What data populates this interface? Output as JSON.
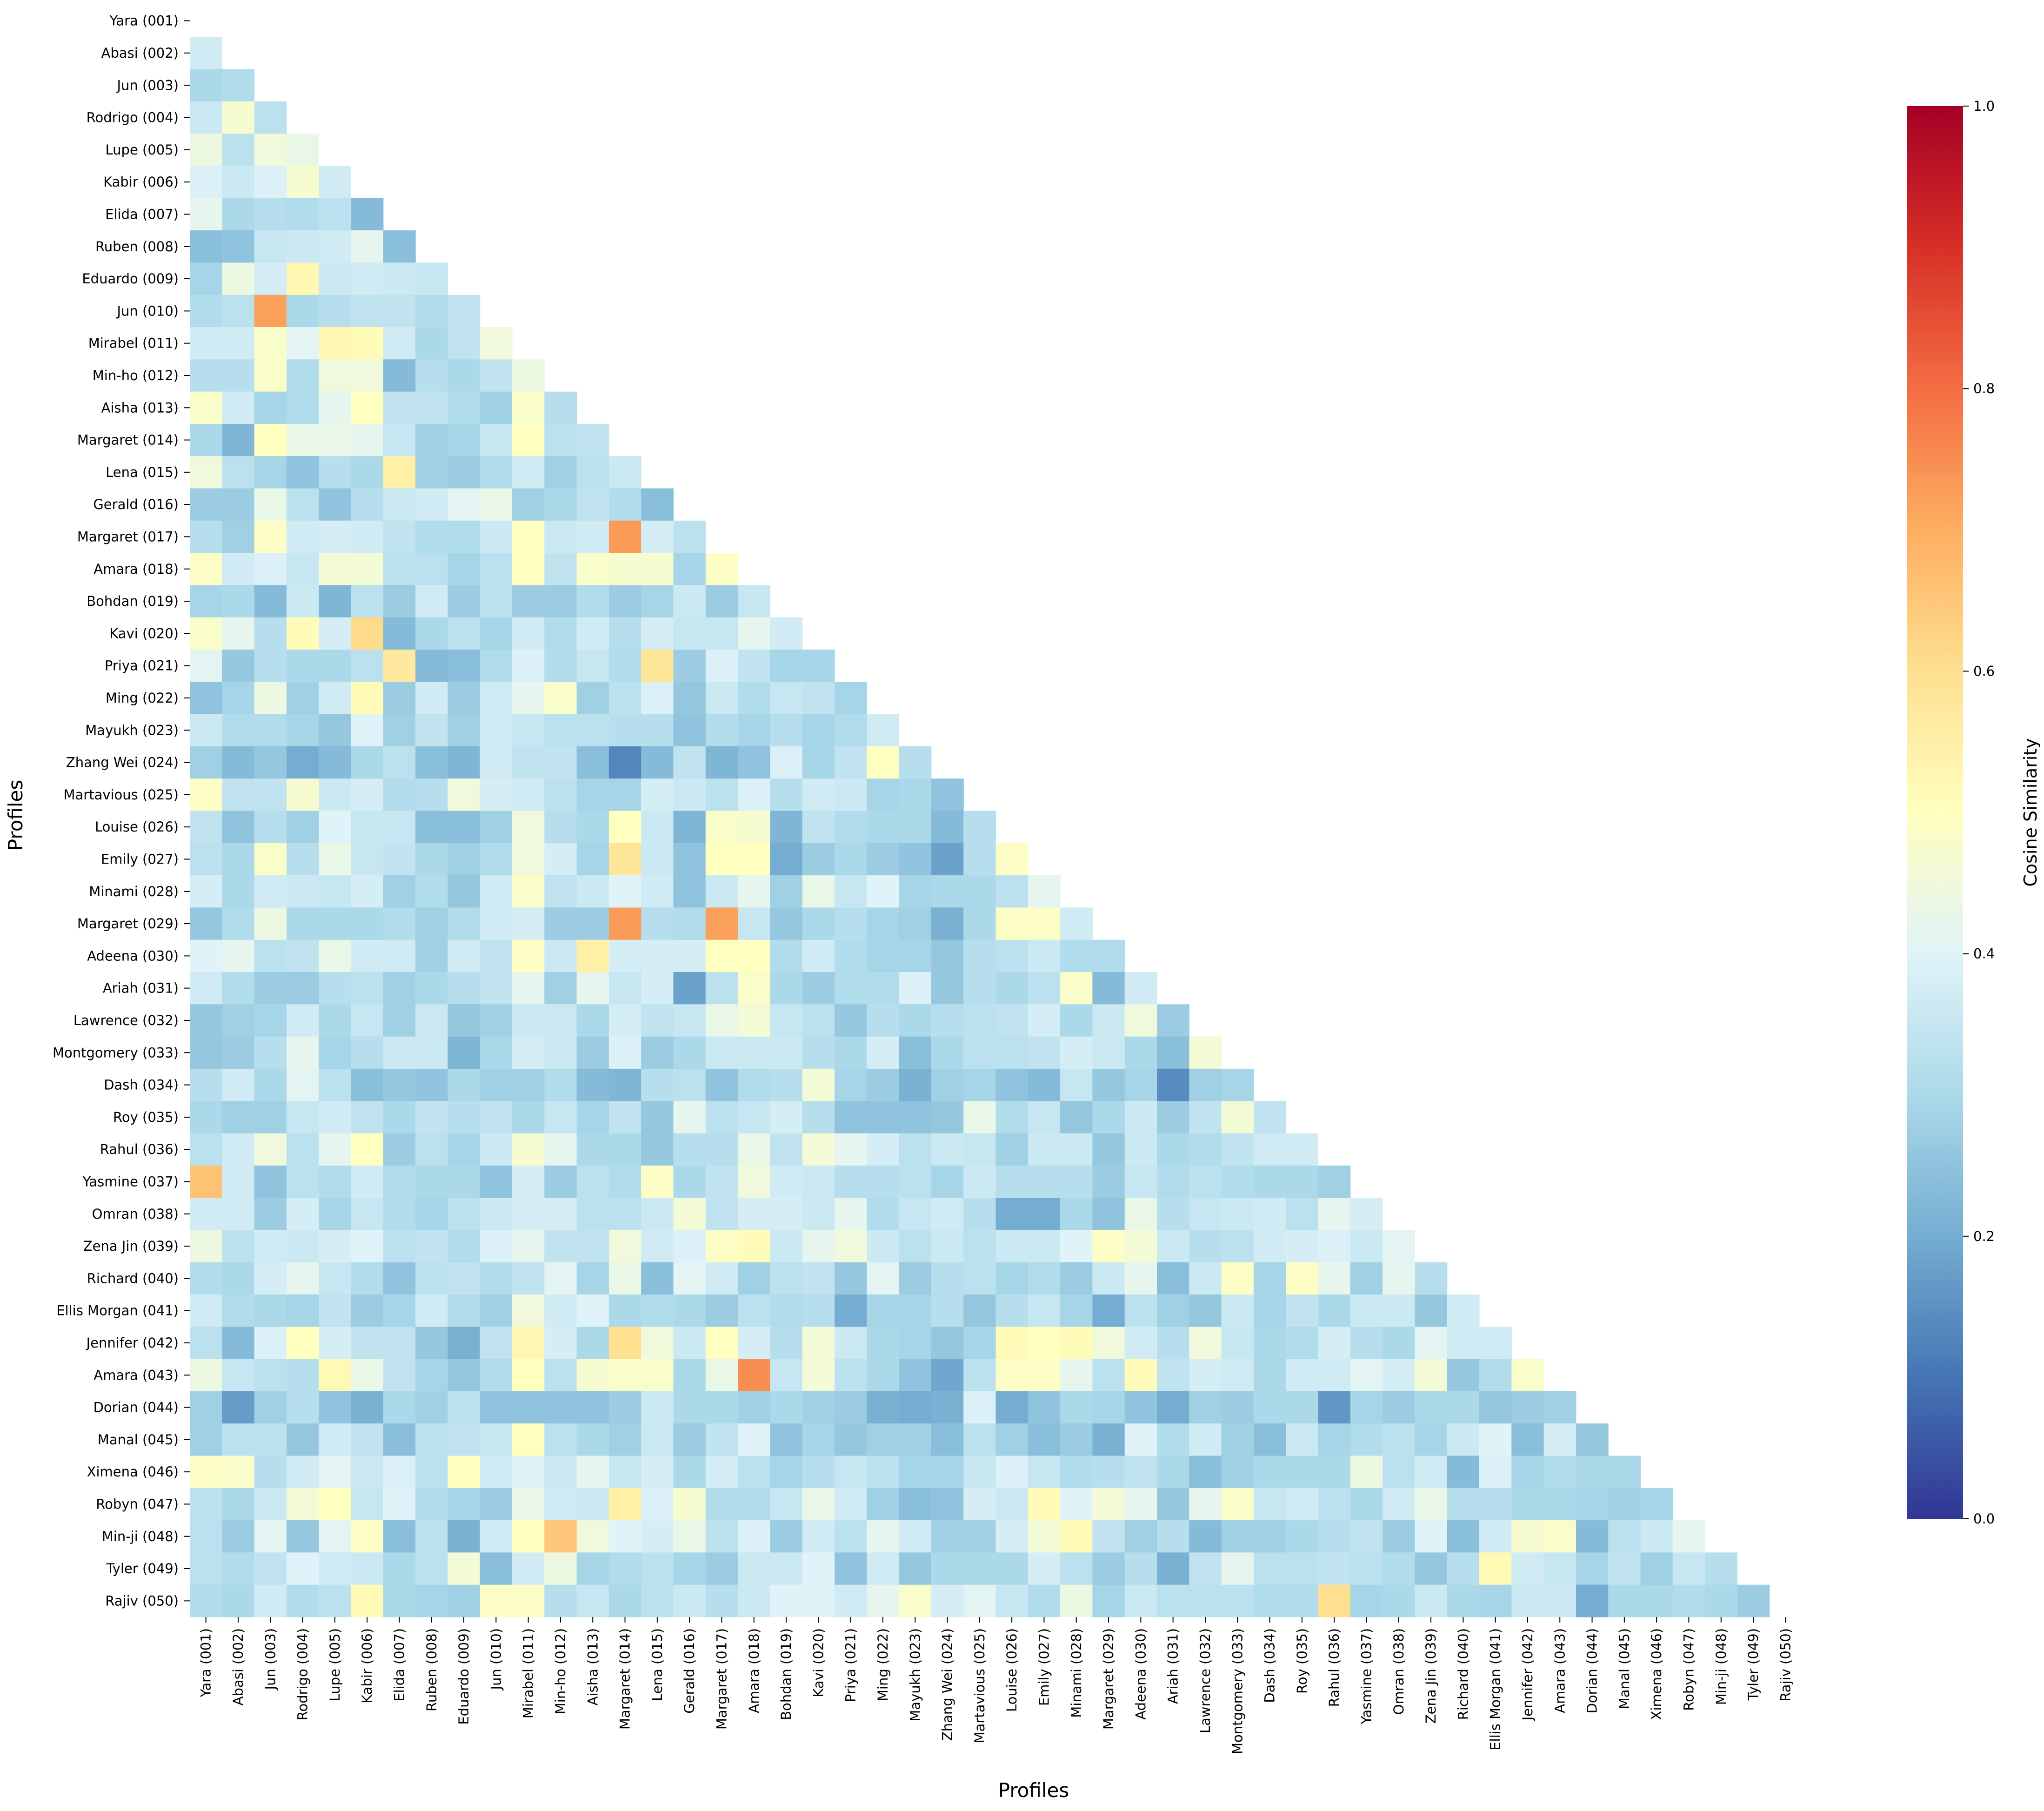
{
  "chart_data": {
    "type": "heatmap",
    "subtype": "lower-triangle correlation matrix",
    "xlabel": "Profiles",
    "ylabel": "Profiles",
    "colorbar": {
      "label": "Cosine Similarity",
      "range": [
        0.0,
        1.0
      ],
      "ticks": [
        0.0,
        0.2,
        0.4,
        0.6,
        0.8,
        1.0
      ],
      "tick_labels": [
        "0.0",
        "0.2",
        "0.4",
        "0.6",
        "0.8",
        "1.0"
      ],
      "colormap": "RdYlBu_r",
      "colormap_stops": [
        "#313695",
        "#4575b4",
        "#74add1",
        "#abd9e9",
        "#e0f3f8",
        "#ffffbf",
        "#fee090",
        "#fdae61",
        "#f46d43",
        "#d73027",
        "#a50026"
      ]
    },
    "labels": [
      "Yara (001)",
      "Abasi (002)",
      "Jun (003)",
      "Rodrigo (004)",
      "Lupe (005)",
      "Kabir (006)",
      "Elida (007)",
      "Ruben (008)",
      "Eduardo (009)",
      "Jun (010)",
      "Mirabel (011)",
      "Min-ho (012)",
      "Aisha (013)",
      "Margaret (014)",
      "Lena (015)",
      "Gerald (016)",
      "Margaret (017)",
      "Amara (018)",
      "Bohdan (019)",
      "Kavi (020)",
      "Priya (021)",
      "Ming (022)",
      "Mayukh (023)",
      "Zhang Wei (024)",
      "Martavious (025)",
      "Louise (026)",
      "Emily (027)",
      "Minami (028)",
      "Margaret (029)",
      "Adeena (030)",
      "Ariah (031)",
      "Lawrence (032)",
      "Montgomery (033)",
      "Dash (034)",
      "Roy (035)",
      "Rahul (036)",
      "Yasmine (037)",
      "Omran (038)",
      "Zena Jin (039)",
      "Richard (040)",
      "Ellis Morgan (041)",
      "Jennifer (042)",
      "Amara (043)",
      "Dorian (044)",
      "Manal (045)",
      "Ximena (046)",
      "Robyn (047)",
      "Min-ji (048)",
      "Tyler (049)",
      "Rajiv (050)"
    ],
    "values_note": "Row i lists similarities of profile i with profiles 1..i-1 (lower triangle, diagonal masked). Values estimated from cell colors.",
    "values": [
      [],
      [
        0.37
      ],
      [
        0.3,
        0.31
      ],
      [
        0.36,
        0.47,
        0.33
      ],
      [
        0.44,
        0.33,
        0.45,
        0.43
      ],
      [
        0.39,
        0.36,
        0.39,
        0.47,
        0.37
      ],
      [
        0.42,
        0.3,
        0.32,
        0.31,
        0.33,
        0.23
      ],
      [
        0.24,
        0.25,
        0.35,
        0.36,
        0.37,
        0.42,
        0.24
      ],
      [
        0.29,
        0.44,
        0.38,
        0.53,
        0.36,
        0.37,
        0.36,
        0.35
      ],
      [
        0.31,
        0.33,
        0.72,
        0.3,
        0.32,
        0.34,
        0.34,
        0.31,
        0.34
      ],
      [
        0.37,
        0.37,
        0.48,
        0.41,
        0.53,
        0.51,
        0.37,
        0.3,
        0.34,
        0.45
      ],
      [
        0.32,
        0.32,
        0.48,
        0.31,
        0.45,
        0.45,
        0.23,
        0.32,
        0.3,
        0.34,
        0.44
      ],
      [
        0.48,
        0.37,
        0.29,
        0.31,
        0.42,
        0.5,
        0.34,
        0.34,
        0.31,
        0.28,
        0.48,
        0.32
      ],
      [
        0.3,
        0.22,
        0.5,
        0.43,
        0.43,
        0.42,
        0.35,
        0.28,
        0.29,
        0.35,
        0.5,
        0.33,
        0.34
      ],
      [
        0.45,
        0.33,
        0.29,
        0.25,
        0.32,
        0.3,
        0.55,
        0.28,
        0.27,
        0.31,
        0.37,
        0.28,
        0.33,
        0.36
      ],
      [
        0.27,
        0.27,
        0.43,
        0.33,
        0.25,
        0.32,
        0.36,
        0.37,
        0.41,
        0.43,
        0.28,
        0.3,
        0.34,
        0.31,
        0.24
      ],
      [
        0.32,
        0.28,
        0.49,
        0.37,
        0.38,
        0.37,
        0.34,
        0.31,
        0.31,
        0.36,
        0.5,
        0.36,
        0.37,
        0.73,
        0.38,
        0.33
      ],
      [
        0.49,
        0.37,
        0.39,
        0.35,
        0.46,
        0.46,
        0.33,
        0.33,
        0.29,
        0.33,
        0.5,
        0.34,
        0.48,
        0.47,
        0.47,
        0.29,
        0.49
      ],
      [
        0.29,
        0.3,
        0.23,
        0.36,
        0.22,
        0.33,
        0.27,
        0.37,
        0.27,
        0.33,
        0.27,
        0.27,
        0.31,
        0.27,
        0.29,
        0.36,
        0.27,
        0.35
      ],
      [
        0.48,
        0.42,
        0.32,
        0.51,
        0.38,
        0.61,
        0.23,
        0.3,
        0.33,
        0.29,
        0.37,
        0.31,
        0.37,
        0.32,
        0.38,
        0.35,
        0.35,
        0.42,
        0.37
      ],
      [
        0.41,
        0.26,
        0.32,
        0.3,
        0.3,
        0.33,
        0.57,
        0.23,
        0.24,
        0.31,
        0.39,
        0.31,
        0.35,
        0.31,
        0.58,
        0.27,
        0.39,
        0.34,
        0.29,
        0.29
      ],
      [
        0.25,
        0.29,
        0.44,
        0.28,
        0.37,
        0.51,
        0.27,
        0.37,
        0.27,
        0.37,
        0.42,
        0.48,
        0.28,
        0.33,
        0.39,
        0.26,
        0.36,
        0.31,
        0.35,
        0.34,
        0.29
      ],
      [
        0.36,
        0.31,
        0.31,
        0.29,
        0.26,
        0.4,
        0.28,
        0.34,
        0.28,
        0.37,
        0.35,
        0.33,
        0.33,
        0.32,
        0.32,
        0.25,
        0.31,
        0.29,
        0.32,
        0.29,
        0.31,
        0.37
      ],
      [
        0.28,
        0.23,
        0.26,
        0.2,
        0.23,
        0.3,
        0.33,
        0.24,
        0.22,
        0.37,
        0.34,
        0.34,
        0.24,
        0.13,
        0.23,
        0.34,
        0.22,
        0.25,
        0.39,
        0.29,
        0.34,
        0.5,
        0.32
      ],
      [
        0.49,
        0.34,
        0.34,
        0.47,
        0.36,
        0.38,
        0.31,
        0.32,
        0.45,
        0.38,
        0.37,
        0.33,
        0.29,
        0.29,
        0.38,
        0.36,
        0.33,
        0.39,
        0.32,
        0.37,
        0.36,
        0.29,
        0.3,
        0.25
      ],
      [
        0.34,
        0.25,
        0.32,
        0.28,
        0.4,
        0.35,
        0.35,
        0.24,
        0.24,
        0.28,
        0.45,
        0.32,
        0.3,
        0.5,
        0.36,
        0.22,
        0.48,
        0.47,
        0.22,
        0.34,
        0.31,
        0.3,
        0.3,
        0.23,
        0.32
      ],
      [
        0.33,
        0.3,
        0.48,
        0.32,
        0.43,
        0.35,
        0.34,
        0.3,
        0.28,
        0.31,
        0.45,
        0.38,
        0.29,
        0.58,
        0.36,
        0.25,
        0.5,
        0.5,
        0.2,
        0.27,
        0.3,
        0.27,
        0.25,
        0.18,
        0.32,
        0.49
      ],
      [
        0.38,
        0.3,
        0.37,
        0.36,
        0.35,
        0.38,
        0.28,
        0.31,
        0.26,
        0.37,
        0.48,
        0.34,
        0.36,
        0.4,
        0.37,
        0.25,
        0.36,
        0.42,
        0.28,
        0.43,
        0.35,
        0.4,
        0.29,
        0.3,
        0.3,
        0.33,
        0.42
      ],
      [
        0.26,
        0.31,
        0.44,
        0.3,
        0.3,
        0.3,
        0.31,
        0.28,
        0.31,
        0.37,
        0.38,
        0.27,
        0.27,
        0.73,
        0.32,
        0.31,
        0.72,
        0.35,
        0.26,
        0.3,
        0.32,
        0.29,
        0.28,
        0.21,
        0.3,
        0.49,
        0.49,
        0.37
      ],
      [
        0.4,
        0.42,
        0.33,
        0.34,
        0.43,
        0.37,
        0.37,
        0.28,
        0.37,
        0.34,
        0.49,
        0.36,
        0.55,
        0.38,
        0.38,
        0.38,
        0.5,
        0.5,
        0.31,
        0.37,
        0.31,
        0.29,
        0.29,
        0.26,
        0.32,
        0.33,
        0.36,
        0.31,
        0.31
      ],
      [
        0.37,
        0.31,
        0.27,
        0.27,
        0.32,
        0.33,
        0.28,
        0.3,
        0.32,
        0.34,
        0.42,
        0.28,
        0.42,
        0.35,
        0.38,
        0.18,
        0.33,
        0.48,
        0.3,
        0.27,
        0.31,
        0.31,
        0.39,
        0.26,
        0.32,
        0.3,
        0.33,
        0.48,
        0.23,
        0.37
      ],
      [
        0.26,
        0.28,
        0.29,
        0.37,
        0.3,
        0.35,
        0.28,
        0.36,
        0.26,
        0.28,
        0.36,
        0.36,
        0.3,
        0.38,
        0.34,
        0.35,
        0.43,
        0.46,
        0.35,
        0.33,
        0.26,
        0.32,
        0.3,
        0.32,
        0.33,
        0.34,
        0.38,
        0.3,
        0.36,
        0.45,
        0.27
      ],
      [
        0.26,
        0.27,
        0.32,
        0.42,
        0.29,
        0.32,
        0.36,
        0.36,
        0.22,
        0.3,
        0.38,
        0.36,
        0.27,
        0.39,
        0.27,
        0.3,
        0.36,
        0.36,
        0.36,
        0.32,
        0.3,
        0.38,
        0.24,
        0.3,
        0.33,
        0.33,
        0.34,
        0.38,
        0.36,
        0.3,
        0.24,
        0.46
      ],
      [
        0.32,
        0.37,
        0.3,
        0.41,
        0.33,
        0.24,
        0.26,
        0.25,
        0.3,
        0.28,
        0.28,
        0.31,
        0.23,
        0.22,
        0.32,
        0.33,
        0.25,
        0.31,
        0.32,
        0.46,
        0.29,
        0.27,
        0.21,
        0.28,
        0.29,
        0.25,
        0.23,
        0.35,
        0.26,
        0.29,
        0.14,
        0.28,
        0.29
      ],
      [
        0.3,
        0.28,
        0.28,
        0.35,
        0.37,
        0.34,
        0.3,
        0.34,
        0.32,
        0.34,
        0.3,
        0.35,
        0.29,
        0.34,
        0.26,
        0.42,
        0.33,
        0.35,
        0.38,
        0.32,
        0.25,
        0.25,
        0.25,
        0.26,
        0.43,
        0.31,
        0.35,
        0.26,
        0.3,
        0.36,
        0.27,
        0.34,
        0.46,
        0.34
      ],
      [
        0.33,
        0.37,
        0.45,
        0.33,
        0.42,
        0.5,
        0.27,
        0.33,
        0.29,
        0.36,
        0.47,
        0.42,
        0.3,
        0.3,
        0.26,
        0.32,
        0.32,
        0.43,
        0.34,
        0.46,
        0.42,
        0.38,
        0.33,
        0.36,
        0.35,
        0.28,
        0.36,
        0.36,
        0.26,
        0.36,
        0.3,
        0.31,
        0.34,
        0.37,
        0.37
      ],
      [
        0.66,
        0.37,
        0.25,
        0.33,
        0.31,
        0.37,
        0.31,
        0.3,
        0.3,
        0.25,
        0.38,
        0.27,
        0.33,
        0.31,
        0.49,
        0.3,
        0.34,
        0.45,
        0.37,
        0.36,
        0.32,
        0.32,
        0.33,
        0.29,
        0.36,
        0.32,
        0.32,
        0.32,
        0.27,
        0.35,
        0.31,
        0.33,
        0.31,
        0.3,
        0.3,
        0.28
      ],
      [
        0.37,
        0.37,
        0.27,
        0.38,
        0.29,
        0.35,
        0.31,
        0.29,
        0.33,
        0.36,
        0.38,
        0.38,
        0.33,
        0.33,
        0.36,
        0.46,
        0.34,
        0.38,
        0.38,
        0.36,
        0.42,
        0.31,
        0.35,
        0.37,
        0.32,
        0.2,
        0.2,
        0.3,
        0.25,
        0.43,
        0.32,
        0.35,
        0.36,
        0.37,
        0.33,
        0.42,
        0.38
      ],
      [
        0.44,
        0.33,
        0.37,
        0.36,
        0.38,
        0.4,
        0.33,
        0.34,
        0.31,
        0.39,
        0.42,
        0.34,
        0.34,
        0.45,
        0.37,
        0.39,
        0.49,
        0.51,
        0.36,
        0.42,
        0.45,
        0.36,
        0.33,
        0.36,
        0.33,
        0.36,
        0.36,
        0.4,
        0.49,
        0.46,
        0.36,
        0.32,
        0.33,
        0.37,
        0.38,
        0.39,
        0.36,
        0.41
      ],
      [
        0.31,
        0.3,
        0.38,
        0.42,
        0.35,
        0.31,
        0.25,
        0.33,
        0.34,
        0.31,
        0.34,
        0.41,
        0.29,
        0.43,
        0.24,
        0.41,
        0.37,
        0.28,
        0.33,
        0.34,
        0.26,
        0.41,
        0.27,
        0.32,
        0.33,
        0.29,
        0.31,
        0.27,
        0.36,
        0.42,
        0.24,
        0.36,
        0.49,
        0.29,
        0.49,
        0.42,
        0.28,
        0.42,
        0.32
      ],
      [
        0.37,
        0.31,
        0.3,
        0.29,
        0.34,
        0.27,
        0.29,
        0.37,
        0.31,
        0.28,
        0.45,
        0.37,
        0.4,
        0.3,
        0.31,
        0.3,
        0.27,
        0.33,
        0.31,
        0.32,
        0.2,
        0.29,
        0.29,
        0.32,
        0.26,
        0.32,
        0.35,
        0.29,
        0.2,
        0.33,
        0.28,
        0.26,
        0.36,
        0.29,
        0.34,
        0.3,
        0.36,
        0.36,
        0.26,
        0.37
      ],
      [
        0.33,
        0.23,
        0.39,
        0.5,
        0.38,
        0.34,
        0.34,
        0.26,
        0.21,
        0.34,
        0.53,
        0.38,
        0.3,
        0.6,
        0.45,
        0.36,
        0.5,
        0.38,
        0.32,
        0.46,
        0.36,
        0.3,
        0.29,
        0.26,
        0.29,
        0.51,
        0.5,
        0.51,
        0.45,
        0.37,
        0.32,
        0.45,
        0.35,
        0.3,
        0.31,
        0.38,
        0.32,
        0.3,
        0.41,
        0.37,
        0.37
      ],
      [
        0.44,
        0.35,
        0.33,
        0.32,
        0.52,
        0.43,
        0.34,
        0.29,
        0.26,
        0.31,
        0.5,
        0.33,
        0.47,
        0.48,
        0.48,
        0.3,
        0.43,
        0.75,
        0.35,
        0.46,
        0.33,
        0.3,
        0.25,
        0.19,
        0.33,
        0.49,
        0.49,
        0.42,
        0.33,
        0.51,
        0.34,
        0.38,
        0.37,
        0.3,
        0.37,
        0.37,
        0.41,
        0.38,
        0.46,
        0.26,
        0.31,
        0.48
      ],
      [
        0.28,
        0.17,
        0.28,
        0.32,
        0.25,
        0.21,
        0.3,
        0.28,
        0.33,
        0.25,
        0.25,
        0.25,
        0.25,
        0.27,
        0.36,
        0.3,
        0.3,
        0.28,
        0.3,
        0.28,
        0.27,
        0.21,
        0.2,
        0.21,
        0.39,
        0.2,
        0.25,
        0.3,
        0.29,
        0.25,
        0.2,
        0.28,
        0.27,
        0.3,
        0.3,
        0.16,
        0.29,
        0.27,
        0.3,
        0.3,
        0.26,
        0.27,
        0.28
      ],
      [
        0.28,
        0.33,
        0.33,
        0.26,
        0.37,
        0.34,
        0.24,
        0.33,
        0.34,
        0.35,
        0.5,
        0.33,
        0.3,
        0.28,
        0.36,
        0.27,
        0.34,
        0.4,
        0.25,
        0.29,
        0.26,
        0.28,
        0.28,
        0.24,
        0.33,
        0.28,
        0.24,
        0.27,
        0.21,
        0.4,
        0.31,
        0.37,
        0.28,
        0.24,
        0.36,
        0.29,
        0.31,
        0.33,
        0.29,
        0.36,
        0.4,
        0.24,
        0.38,
        0.26
      ],
      [
        0.49,
        0.48,
        0.32,
        0.37,
        0.41,
        0.36,
        0.39,
        0.33,
        0.5,
        0.37,
        0.4,
        0.36,
        0.42,
        0.35,
        0.38,
        0.3,
        0.38,
        0.33,
        0.29,
        0.32,
        0.35,
        0.33,
        0.29,
        0.29,
        0.35,
        0.39,
        0.35,
        0.31,
        0.32,
        0.34,
        0.3,
        0.24,
        0.28,
        0.3,
        0.3,
        0.3,
        0.44,
        0.33,
        0.37,
        0.23,
        0.39,
        0.29,
        0.31,
        0.3,
        0.3
      ],
      [
        0.33,
        0.3,
        0.36,
        0.46,
        0.5,
        0.35,
        0.4,
        0.31,
        0.29,
        0.27,
        0.43,
        0.37,
        0.36,
        0.55,
        0.39,
        0.47,
        0.31,
        0.31,
        0.35,
        0.43,
        0.37,
        0.28,
        0.24,
        0.25,
        0.38,
        0.36,
        0.51,
        0.4,
        0.46,
        0.42,
        0.26,
        0.42,
        0.48,
        0.35,
        0.37,
        0.33,
        0.3,
        0.37,
        0.43,
        0.32,
        0.32,
        0.3,
        0.3,
        0.29,
        0.28,
        0.29
      ],
      [
        0.33,
        0.27,
        0.41,
        0.26,
        0.41,
        0.49,
        0.24,
        0.33,
        0.21,
        0.37,
        0.5,
        0.65,
        0.45,
        0.4,
        0.38,
        0.43,
        0.33,
        0.39,
        0.27,
        0.37,
        0.33,
        0.42,
        0.37,
        0.28,
        0.28,
        0.38,
        0.46,
        0.51,
        0.34,
        0.28,
        0.32,
        0.23,
        0.28,
        0.28,
        0.3,
        0.32,
        0.34,
        0.27,
        0.4,
        0.24,
        0.37,
        0.47,
        0.48,
        0.23,
        0.33,
        0.36,
        0.42
      ],
      [
        0.33,
        0.31,
        0.34,
        0.4,
        0.37,
        0.36,
        0.3,
        0.33,
        0.46,
        0.24,
        0.37,
        0.44,
        0.29,
        0.31,
        0.33,
        0.29,
        0.27,
        0.36,
        0.36,
        0.4,
        0.25,
        0.37,
        0.26,
        0.3,
        0.3,
        0.3,
        0.38,
        0.33,
        0.27,
        0.32,
        0.21,
        0.34,
        0.42,
        0.33,
        0.33,
        0.34,
        0.33,
        0.31,
        0.26,
        0.32,
        0.52,
        0.37,
        0.35,
        0.29,
        0.34,
        0.28,
        0.35,
        0.32
      ],
      [
        0.31,
        0.3,
        0.37,
        0.31,
        0.33,
        0.52,
        0.3,
        0.29,
        0.28,
        0.49,
        0.49,
        0.32,
        0.35,
        0.3,
        0.33,
        0.36,
        0.32,
        0.36,
        0.4,
        0.4,
        0.37,
        0.42,
        0.48,
        0.38,
        0.41,
        0.35,
        0.31,
        0.44,
        0.29,
        0.36,
        0.33,
        0.33,
        0.33,
        0.31,
        0.31,
        0.6,
        0.29,
        0.3,
        0.36,
        0.3,
        0.29,
        0.36,
        0.36,
        0.2,
        0.3,
        0.3,
        0.31,
        0.3,
        0.27
      ]
    ]
  }
}
